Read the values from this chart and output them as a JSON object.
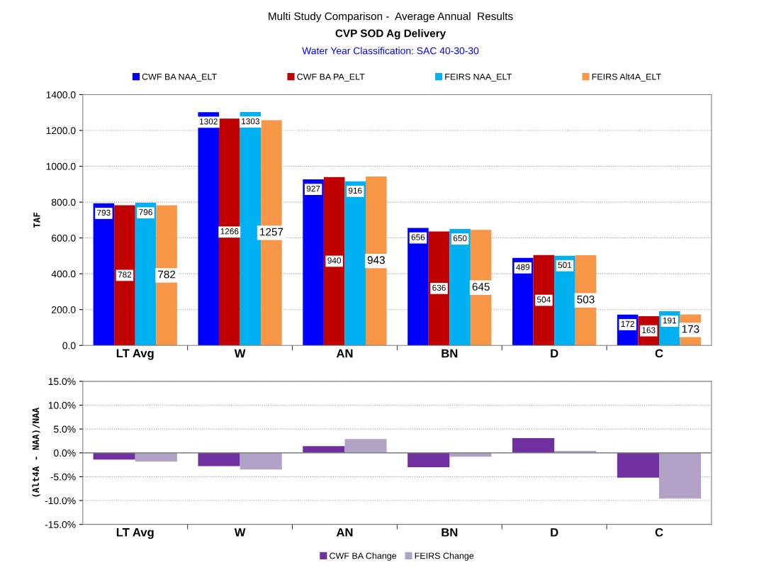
{
  "chart_data": [
    {
      "type": "bar",
      "title": "Multi Study Comparison -  Average Annual  Results",
      "subtitle": "CVP SOD Ag Delivery",
      "annotations": [
        "Water Year Classification: SAC 40-30-30"
      ],
      "ylabel": "TAF",
      "categories": [
        "LT Avg",
        "W",
        "AN",
        "BN",
        "D",
        "C"
      ],
      "series": [
        {
          "name": "CWF BA NAA_ELT",
          "color": "#0000ff",
          "values": [
            793,
            1302,
            927,
            656,
            489,
            172
          ]
        },
        {
          "name": "CWF BA PA_ELT",
          "color": "#c00000",
          "values": [
            782,
            1266,
            940,
            636,
            504,
            163
          ]
        },
        {
          "name": "FEIRS NAA_ELT",
          "color": "#00b0f0",
          "values": [
            796,
            1303,
            916,
            650,
            501,
            191
          ]
        },
        {
          "name": "FEIRS Alt4A_ELT",
          "color": "#f79646",
          "values": [
            782,
            1257,
            943,
            645,
            503,
            173
          ]
        }
      ],
      "ylim": [
        0,
        1400
      ],
      "yticks": [
        {
          "value": 0,
          "label": "0.0"
        },
        {
          "value": 200,
          "label": "200.0"
        },
        {
          "value": 400,
          "label": "400.0"
        },
        {
          "value": 600,
          "label": "600.0"
        },
        {
          "value": 800,
          "label": "800.0"
        },
        {
          "value": 1000,
          "label": "1000.0"
        },
        {
          "value": 1200,
          "label": "1200.0"
        },
        {
          "value": 1400,
          "label": "1400.0"
        }
      ],
      "grid": "y",
      "legend": "top",
      "data_labels": true
    },
    {
      "type": "bar",
      "ylabel": "(Alt4A - NAA)/NAA",
      "categories": [
        "LT Avg",
        "W",
        "AN",
        "BN",
        "D",
        "C"
      ],
      "series": [
        {
          "name": "CWF BA Change",
          "color": "#7030a0",
          "values": [
            -1.4,
            -2.8,
            1.4,
            -3.0,
            3.1,
            -5.2
          ]
        },
        {
          "name": "FEIRS Change",
          "color": "#b3a2c7",
          "values": [
            -1.8,
            -3.5,
            2.9,
            -0.8,
            0.4,
            -9.6
          ]
        }
      ],
      "ylim": [
        -15,
        15
      ],
      "yticks": [
        {
          "value": -15,
          "label": "-15.0%"
        },
        {
          "value": -10,
          "label": "-10.0%"
        },
        {
          "value": -5,
          "label": "-5.0%"
        },
        {
          "value": 0,
          "label": "0.0%"
        },
        {
          "value": 5,
          "label": "5.0%"
        },
        {
          "value": 10,
          "label": "10.0%"
        },
        {
          "value": 15,
          "label": "15.0%"
        }
      ],
      "grid": "y",
      "legend": "bottom"
    }
  ]
}
